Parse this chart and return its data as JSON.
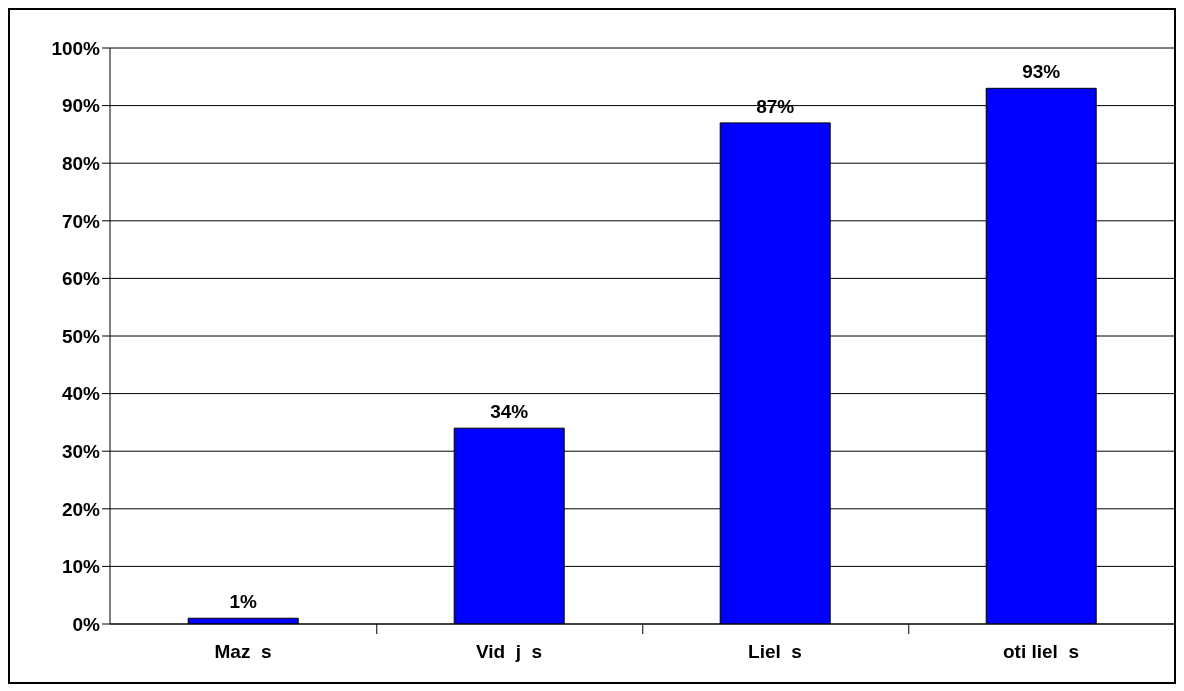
{
  "chart_data": {
    "type": "bar",
    "categories": [
      "Maz  s",
      "Vid  j  s",
      "Liel  s",
      "oti liel  s"
    ],
    "values": [
      1,
      34,
      87,
      93
    ],
    "color": "#0000ff",
    "ylim": [
      0,
      100
    ],
    "yticks": [
      {
        "value": 0,
        "label": "0%"
      },
      {
        "value": 10,
        "label": "10%"
      },
      {
        "value": 20,
        "label": "20%"
      },
      {
        "value": 30,
        "label": "30%"
      },
      {
        "value": 40,
        "label": "40%"
      },
      {
        "value": 50,
        "label": "50%"
      },
      {
        "value": 60,
        "label": "60%"
      },
      {
        "value": 70,
        "label": "70%"
      },
      {
        "value": 80,
        "label": "80%"
      },
      {
        "value": 90,
        "label": "90%"
      },
      {
        "value": 100,
        "label": "100%"
      }
    ],
    "value_labels": [
      "1%",
      "34%",
      "87%",
      "93%"
    ],
    "grid": "y"
  }
}
